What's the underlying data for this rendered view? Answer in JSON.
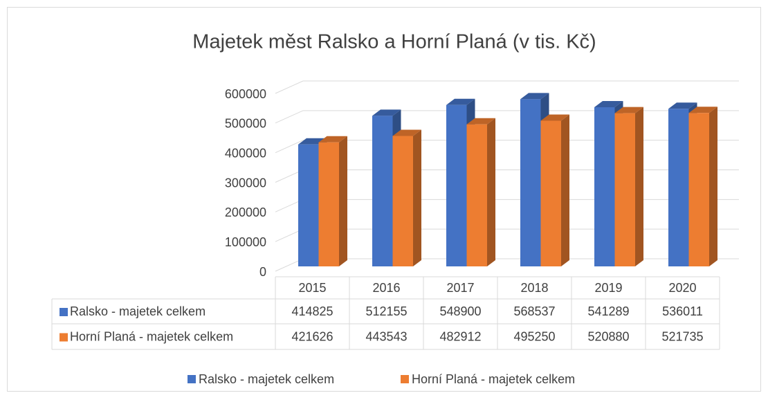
{
  "chart_data": {
    "type": "bar3d",
    "title": "Majetek měst Ralsko a Horní Planá (v tis. Kč)",
    "categories": [
      "2015",
      "2016",
      "2017",
      "2018",
      "2019",
      "2020"
    ],
    "series": [
      {
        "name": "Ralsko - majetek celkem",
        "color": "#4472c4",
        "values": [
          414825,
          512155,
          548900,
          568537,
          541289,
          536011
        ]
      },
      {
        "name": "Horní Planá - majetek celkem",
        "color": "#ed7d31",
        "values": [
          421626,
          443543,
          482912,
          495250,
          520880,
          521735
        ]
      }
    ],
    "ylim": [
      0,
      600000
    ],
    "yticks": [
      0,
      100000,
      200000,
      300000,
      400000,
      500000,
      600000
    ],
    "grid": true,
    "legend": "bottom"
  }
}
